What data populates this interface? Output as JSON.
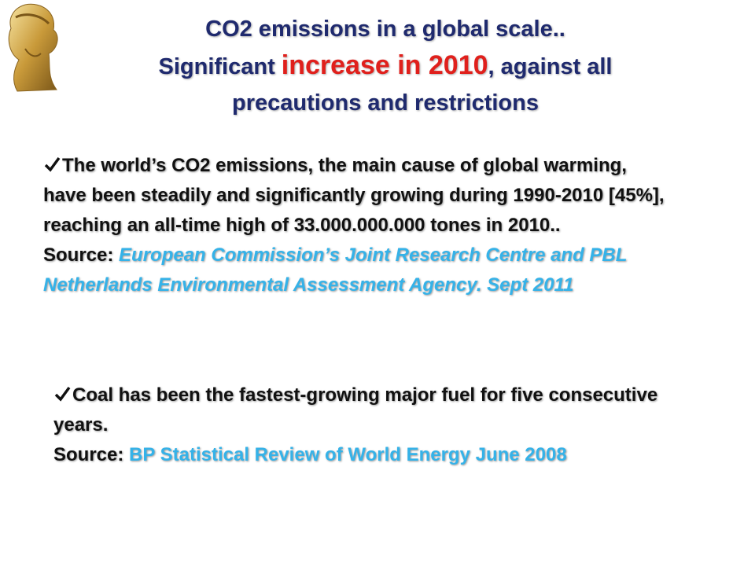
{
  "header": {
    "line1": "CO2 emissions in a global scale..",
    "line2_start": "Significant ",
    "line2_highlight": "increase in 2010",
    "line2_end": ", against all",
    "line3": "precautions and restrictions"
  },
  "bullets": [
    {
      "text": "The world’s CO2 emissions, the main cause of global warming, have been steadily and significantly growing during 1990-2010 [45%], reaching an all-time high of 33.000.000.000 tones in 2010..",
      "source_label": "Source:",
      "source": "European Commission’s Joint Research Centre and PBL Netherlands Environmental Assessment Agency. Sept 2011"
    },
    {
      "text": "Coal has been the fastest-growing major fuel for five consecutive years.",
      "source_label": "Source:",
      "source": "BP Statistical Review of World Energy June 2008"
    }
  ]
}
